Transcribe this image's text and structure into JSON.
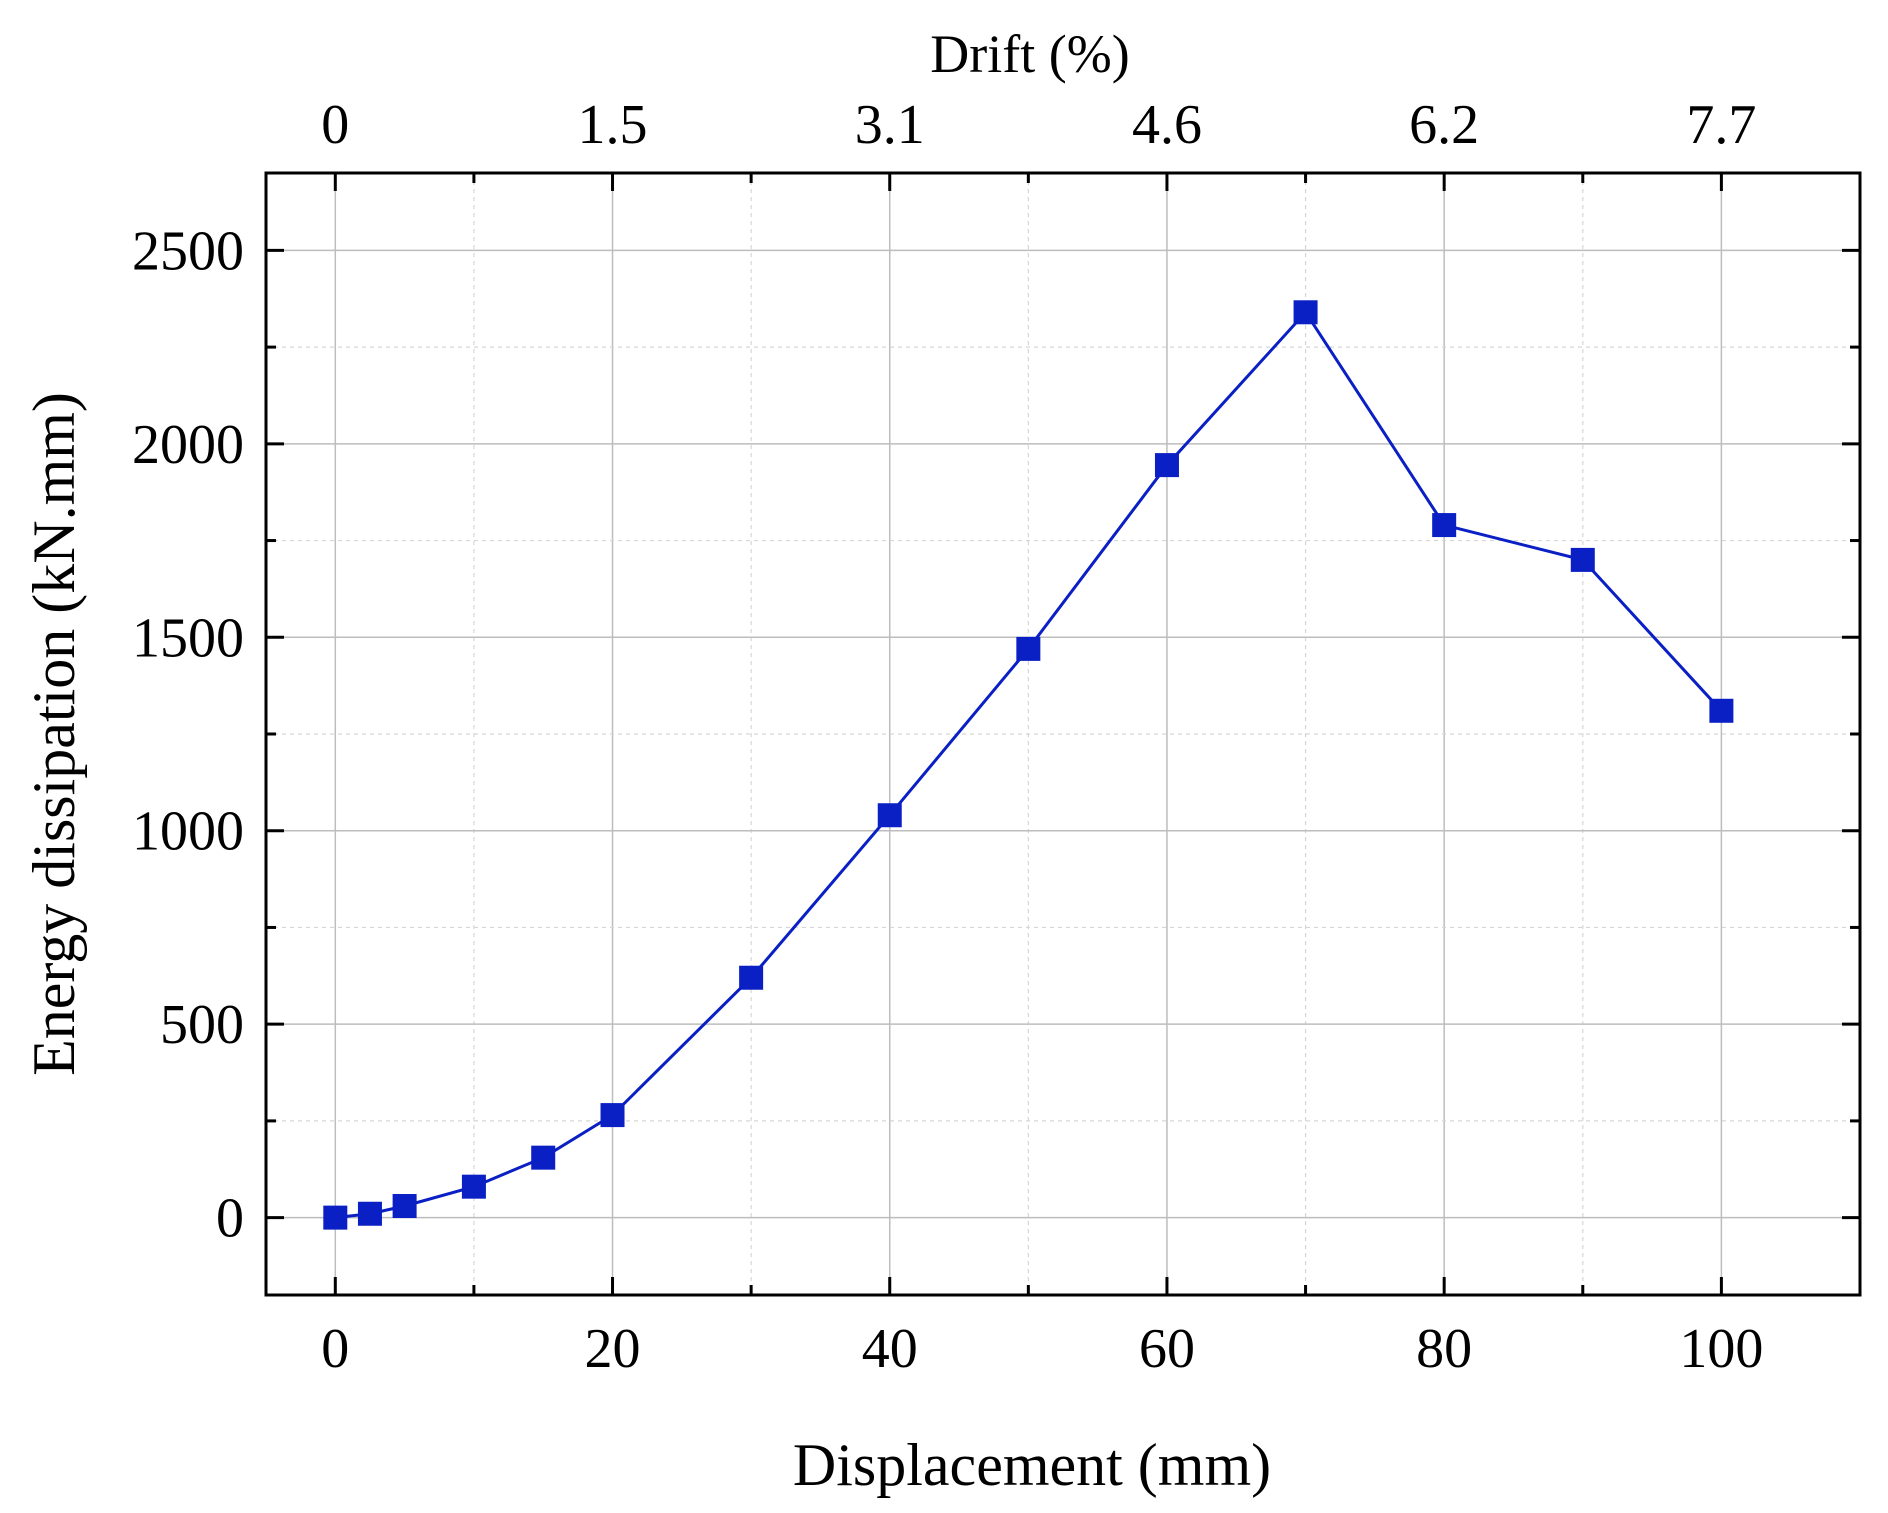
{
  "chart_data": {
    "type": "line",
    "title": "",
    "xlabel": "Displacement (mm)",
    "ylabel": "Energy dissipation (kN.mm)",
    "x2label": "Drift (%)",
    "xlim": [
      -5,
      110
    ],
    "ylim": [
      -200,
      2700
    ],
    "x_ticks": [
      "0",
      "20",
      "40",
      "60",
      "80",
      "100"
    ],
    "x_tick_values": [
      0,
      20,
      40,
      60,
      80,
      100
    ],
    "y_ticks": [
      "0",
      "500",
      "1000",
      "1500",
      "2000",
      "2500"
    ],
    "y_tick_values": [
      0,
      500,
      1000,
      1500,
      2000,
      2500
    ],
    "x2_ticks": [
      "0",
      "1.5",
      "3.1",
      "4.6",
      "6.2",
      "7.7"
    ],
    "x2_tick_values": [
      0,
      20,
      40,
      60,
      80,
      100
    ],
    "grid": true,
    "legend": "none",
    "series": [
      {
        "color": "#0a1fc4",
        "marker": "square",
        "x": [
          0,
          2.5,
          5,
          10,
          15,
          20,
          30,
          40,
          50,
          60,
          70,
          80,
          90,
          100
        ],
        "y": [
          0,
          10,
          30,
          80,
          155,
          265,
          620,
          1040,
          1470,
          1945,
          2340,
          1790,
          1700,
          1310
        ]
      }
    ]
  }
}
